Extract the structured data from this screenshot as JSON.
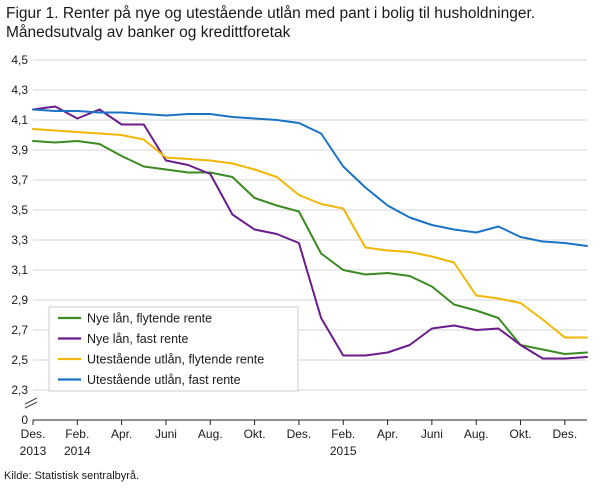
{
  "title_line1": "Figur 1. Renter på nye og utestående utlån med pant i bolig til husholdninger.",
  "title_line2": "Månedsutvalg av banker og kredittforetak",
  "source": "Kilde: Statistisk sentralbyrå.",
  "chart_data": {
    "type": "line",
    "title": "Figur 1. Renter på nye og utestående utlån med pant i bolig til husholdninger. Månedsutvalg av banker og kredittforetak",
    "xlabel": "",
    "ylabel": "",
    "y_ticks": [
      "0",
      "2,3",
      "2,5",
      "2,7",
      "2,9",
      "3,1",
      "3,3",
      "3,5",
      "3,7",
      "3,9",
      "4,1",
      "4,3",
      "4,5"
    ],
    "y_break": "between 0 and 2,3",
    "ylim": [
      2.2,
      4.5
    ],
    "x_tick_labels": [
      {
        "line1": "Des.",
        "line2": "2013"
      },
      {
        "line1": "Feb.",
        "line2": "2014"
      },
      {
        "line1": "Apr.",
        "line2": ""
      },
      {
        "line1": "Juni",
        "line2": ""
      },
      {
        "line1": "Aug.",
        "line2": ""
      },
      {
        "line1": "Okt.",
        "line2": ""
      },
      {
        "line1": "Des.",
        "line2": ""
      },
      {
        "line1": "Feb.",
        "line2": "2015"
      },
      {
        "line1": "Apr.",
        "line2": ""
      },
      {
        "line1": "Juni",
        "line2": ""
      },
      {
        "line1": "Aug.",
        "line2": ""
      },
      {
        "line1": "Okt.",
        "line2": ""
      },
      {
        "line1": "Des.",
        "line2": ""
      }
    ],
    "categories": [
      "2013-12",
      "2014-01",
      "2014-02",
      "2014-03",
      "2014-04",
      "2014-05",
      "2014-06",
      "2014-07",
      "2014-08",
      "2014-09",
      "2014-10",
      "2014-11",
      "2014-12",
      "2015-01",
      "2015-02",
      "2015-03",
      "2015-04",
      "2015-05",
      "2015-06",
      "2015-07",
      "2015-08",
      "2015-09",
      "2015-10",
      "2015-11",
      "2015-12",
      "2016-01"
    ],
    "grid": "horizontal",
    "legend_position": "bottom-left",
    "series": [
      {
        "name": "Nye lån, flytende rente",
        "color": "#3b8a22",
        "values": [
          3.96,
          3.95,
          3.96,
          3.94,
          3.86,
          3.79,
          3.77,
          3.75,
          3.75,
          3.72,
          3.58,
          3.53,
          3.49,
          3.21,
          3.1,
          3.07,
          3.08,
          3.06,
          2.99,
          2.87,
          2.83,
          2.78,
          2.6,
          2.57,
          2.54,
          2.55
        ]
      },
      {
        "name": "Nye lån, fast rente",
        "color": "#6b1c8c",
        "values": [
          4.17,
          4.19,
          4.11,
          4.17,
          4.07,
          4.07,
          3.83,
          3.8,
          3.74,
          3.47,
          3.37,
          3.34,
          3.28,
          2.78,
          2.53,
          2.53,
          2.55,
          2.6,
          2.71,
          2.73,
          2.7,
          2.71,
          2.6,
          2.51,
          2.51,
          2.52
        ]
      },
      {
        "name": "Utestående utlån, flytende rente",
        "color": "#f2b705",
        "values": [
          4.04,
          4.03,
          4.02,
          4.01,
          4.0,
          3.97,
          3.85,
          3.84,
          3.83,
          3.81,
          3.77,
          3.72,
          3.6,
          3.54,
          3.51,
          3.25,
          3.23,
          3.22,
          3.19,
          3.15,
          2.93,
          2.91,
          2.88,
          2.77,
          2.65,
          2.65
        ]
      },
      {
        "name": "Utestående utlån, fast rente",
        "color": "#1a73c4",
        "values": [
          4.17,
          4.16,
          4.16,
          4.15,
          4.15,
          4.14,
          4.13,
          4.14,
          4.14,
          4.12,
          4.11,
          4.1,
          4.08,
          4.01,
          3.79,
          3.65,
          3.53,
          3.45,
          3.4,
          3.37,
          3.35,
          3.39,
          3.32,
          3.29,
          3.28,
          3.26
        ]
      }
    ]
  }
}
